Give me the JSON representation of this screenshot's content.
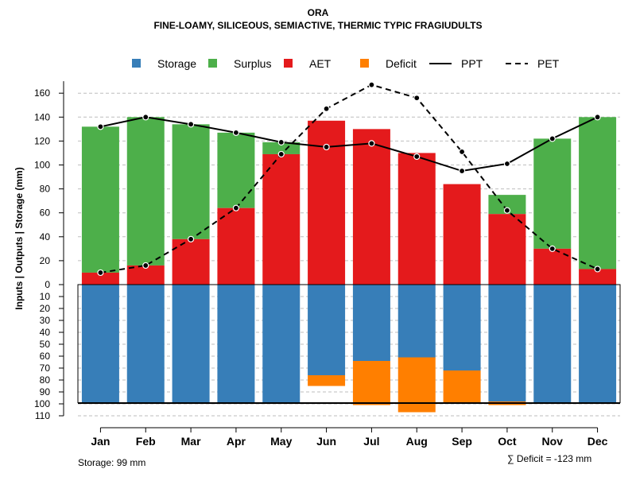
{
  "chart_data": {
    "type": "bar",
    "title": "ORA",
    "subtitle": "FINE-LOAMY, SILICEOUS, SEMIACTIVE, THERMIC TYPIC FRAGIUDULTS",
    "ylabel": "Inputs | Outputs | Storage    (mm)",
    "categories": [
      "Jan",
      "Feb",
      "Mar",
      "Apr",
      "May",
      "Jun",
      "Jul",
      "Aug",
      "Sep",
      "Oct",
      "Nov",
      "Dec"
    ],
    "upper_ylim": [
      0,
      170
    ],
    "upper_ticks": [
      0,
      20,
      40,
      60,
      80,
      100,
      120,
      140,
      160
    ],
    "lower_ylim": [
      0,
      110
    ],
    "lower_ticks": [
      10,
      20,
      30,
      40,
      50,
      60,
      70,
      80,
      90,
      100,
      110
    ],
    "legend": [
      "Storage",
      "Surplus",
      "AET",
      "Deficit",
      "PPT",
      "PET"
    ],
    "legend_position": "top",
    "colors": {
      "storage": "#377EB8",
      "surplus": "#4DAF4A",
      "aet": "#E41A1C",
      "deficit": "#FF7F00",
      "line": "#000000",
      "grid": "#BEBEBE"
    },
    "series": [
      {
        "name": "AET",
        "values": [
          10,
          16,
          38,
          64,
          109,
          137,
          130,
          110,
          84,
          59,
          30,
          13
        ]
      },
      {
        "name": "Surplus",
        "values": [
          122,
          124,
          96,
          63,
          10,
          0,
          0,
          0,
          0,
          16,
          92,
          127
        ]
      },
      {
        "name": "PPT",
        "values": [
          132,
          140,
          134,
          127,
          119,
          115,
          118,
          107,
          95,
          101,
          122,
          140
        ]
      },
      {
        "name": "PET",
        "values": [
          10,
          16,
          38,
          64,
          109,
          147,
          167,
          156,
          111,
          62,
          30,
          13
        ]
      },
      {
        "name": "Storage",
        "values": [
          99,
          99,
          99,
          99,
          99,
          76,
          64,
          61,
          72,
          98,
          99,
          99
        ]
      },
      {
        "name": "Deficit",
        "values": [
          0,
          0,
          0,
          0,
          0,
          9,
          37,
          46,
          28,
          3,
          0,
          0
        ]
      }
    ]
  },
  "footer": {
    "storage_note": "Storage: 99 mm",
    "deficit_note": "∑ Deficit = -123 mm"
  }
}
